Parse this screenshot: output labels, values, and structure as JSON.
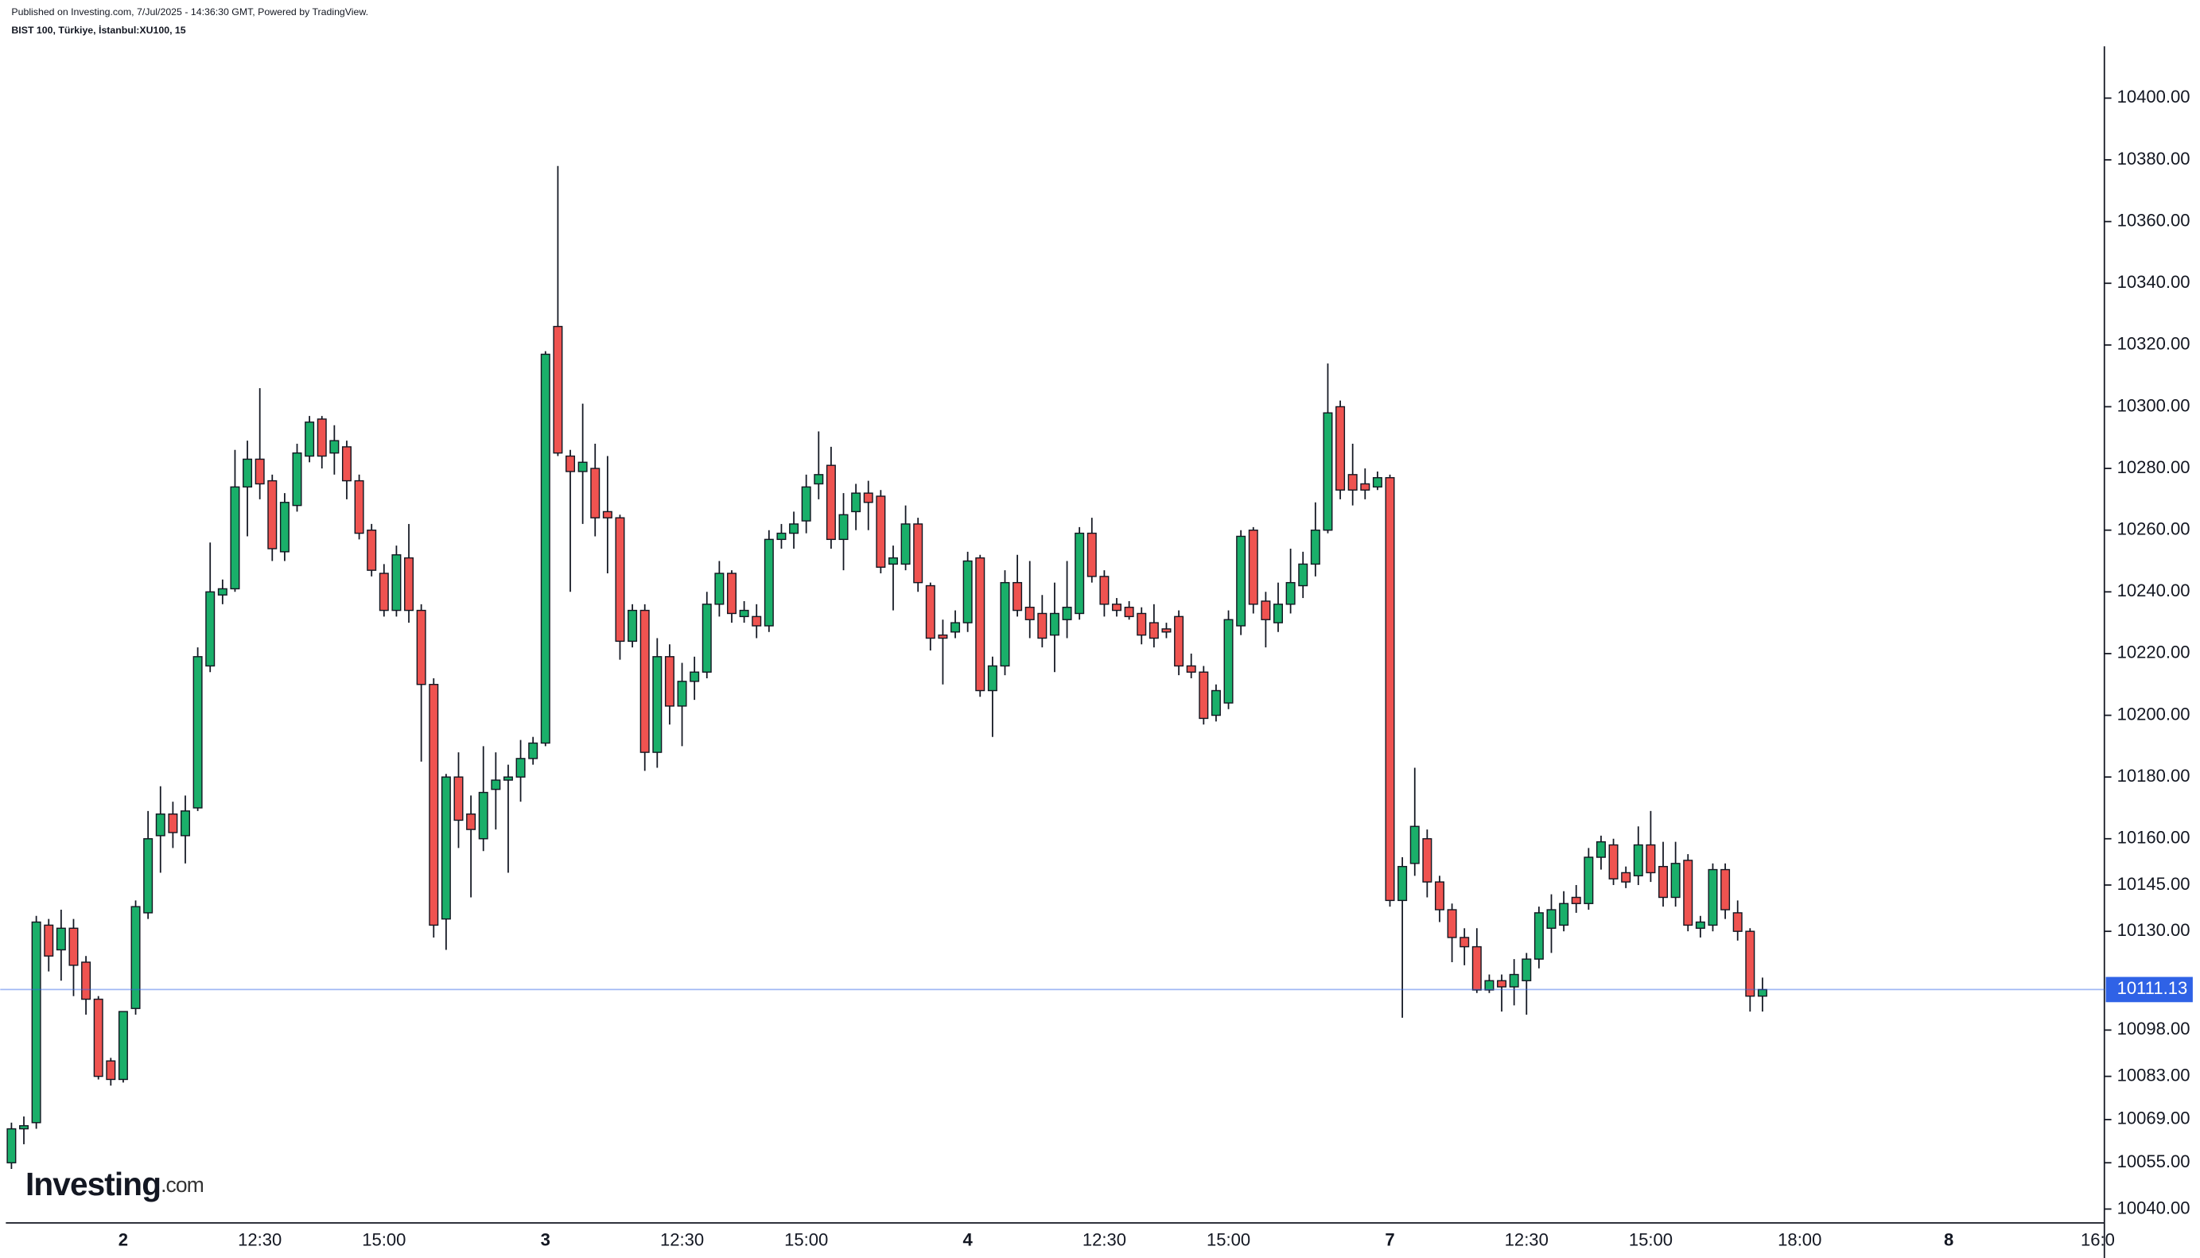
{
  "header": {
    "published": "Published on Investing.com, 7/Jul/2025 - 14:36:30 GMT, Powered by TradingView.",
    "symbol": "BIST 100, Türkiye, İstanbul:XU100, 15"
  },
  "logo": {
    "brand": "Investing",
    "suffix": ".com"
  },
  "chart_data": {
    "type": "candlestick",
    "categories": [
      null,
      null,
      null,
      null,
      null,
      null,
      null,
      null,
      null,
      "2",
      null,
      null,
      null,
      null,
      null,
      null,
      null,
      null,
      null,
      null,
      "12:30",
      null,
      null,
      null,
      null,
      null,
      null,
      null,
      null,
      null,
      "15:00",
      null,
      null,
      null,
      null,
      null,
      null,
      null,
      null,
      null,
      null,
      null,
      null,
      "3",
      null,
      null,
      null,
      null,
      null,
      null,
      null,
      null,
      null,
      null,
      "12:30",
      null,
      null,
      null,
      null,
      null,
      null,
      null,
      null,
      null,
      "15:00",
      null,
      null,
      null,
      null,
      null,
      null,
      null,
      null,
      null,
      null,
      null,
      null,
      "4",
      null,
      null,
      null,
      null,
      null,
      null,
      null,
      null,
      null,
      null,
      "12:30",
      null,
      null,
      null,
      null,
      null,
      null,
      null,
      null,
      null,
      "15:00",
      null,
      null,
      null,
      null,
      null,
      null,
      null,
      null,
      null,
      null,
      null,
      null,
      "7",
      null,
      null,
      null,
      null,
      null,
      null,
      null,
      null,
      null,
      null,
      "12:30",
      null,
      null,
      null,
      null,
      null,
      null,
      null,
      null,
      null,
      "15:00",
      null,
      null,
      null,
      null,
      null,
      null,
      null,
      null,
      null,
      null,
      null,
      "18:00",
      null,
      null,
      null,
      null,
      null,
      null,
      null,
      null,
      null,
      null,
      null,
      "8",
      null,
      null,
      null,
      null,
      null,
      null,
      null,
      null,
      null,
      null,
      null,
      "16:0"
    ],
    "open": [
      10055,
      10066,
      10068,
      10132,
      10124,
      10131,
      10120,
      10108,
      10088,
      10082,
      10105,
      10136,
      10161,
      10168,
      10161,
      10170,
      10216,
      10239,
      10241,
      10274,
      10283,
      10276,
      10253,
      10268,
      10284,
      10296,
      10285,
      10287,
      10276,
      10260,
      10246,
      10234,
      10251,
      10234,
      10210,
      10134,
      10180,
      10168,
      10160,
      10176,
      10179,
      10180,
      10186,
      10191,
      10326,
      10284,
      10279,
      10280,
      10266,
      10264,
      10224,
      10234,
      10188,
      10219,
      10203,
      10211,
      10214,
      10236,
      10246,
      10232,
      10232,
      10229,
      10257,
      10259,
      10263,
      10275,
      10281,
      10257,
      10266,
      10272,
      10271,
      10249,
      10249,
      10262,
      10242,
      10226,
      10227,
      10230,
      10251,
      10208,
      10216,
      10243,
      10235,
      10233,
      10226,
      10231,
      10233,
      10259,
      10245,
      10236,
      10235,
      10233,
      10230,
      10228,
      10232,
      10216,
      10214,
      10200,
      10204,
      10229,
      10260,
      10237,
      10230,
      10236,
      10242,
      10249,
      10260,
      10300,
      10278,
      10275,
      10274,
      10277,
      10140,
      10152,
      10160,
      10146,
      10137,
      10128,
      10125,
      10111,
      10114,
      10112,
      10114,
      10121,
      10131,
      10132,
      10141,
      10139,
      10154,
      10158,
      10149,
      10148,
      10158,
      10151,
      10141,
      10153,
      10131,
      10132,
      10150,
      10136,
      10130,
      10109,
      null,
      null,
      null,
      null,
      null,
      null,
      null,
      null,
      null,
      null,
      null,
      null,
      null,
      null,
      null,
      null,
      null,
      null,
      null,
      null,
      null,
      null,
      null,
      null,
      null,
      null,
      null
    ],
    "high": [
      10068,
      10070,
      10135,
      10134,
      10137,
      10134,
      10122,
      10109,
      10089,
      10104,
      10140,
      10169,
      10177,
      10172,
      10174,
      10222,
      10256,
      10244,
      10286,
      10289,
      10306,
      10278,
      10272,
      10288,
      10297,
      10297,
      10294,
      10289,
      10278,
      10262,
      10249,
      10255,
      10262,
      10236,
      10212,
      10181,
      10188,
      10174,
      10190,
      10188,
      10184,
      10192,
      10193,
      10318,
      10378,
      10286,
      10301,
      10288,
      10284,
      10265,
      10236,
      10236,
      10225,
      10223,
      10217,
      10219,
      10240,
      10250,
      10247,
      10237,
      10236,
      10260,
      10262,
      10266,
      10278,
      10292,
      10287,
      10272,
      10275,
      10276,
      10273,
      10255,
      10268,
      10264,
      10243,
      10231,
      10234,
      10253,
      10252,
      10219,
      10247,
      10252,
      10250,
      10239,
      10243,
      10250,
      10261,
      10264,
      10247,
      10238,
      10237,
      10235,
      10236,
      10230,
      10234,
      10220,
      10216,
      10210,
      10234,
      10260,
      10261,
      10240,
      10243,
      10254,
      10253,
      10269,
      10314,
      10302,
      10288,
      10280,
      10279,
      10278,
      10154,
      10183,
      10163,
      10148,
      10139,
      10131,
      10131,
      10116,
      10116,
      10121,
      10123,
      10138,
      10142,
      10143,
      10145,
      10157,
      10161,
      10160,
      10151,
      10164,
      10169,
      10159,
      10159,
      10155,
      10135,
      10152,
      10152,
      10140,
      10131,
      10115,
      null,
      null,
      null,
      null,
      null,
      null,
      null,
      null,
      null,
      null,
      null,
      null,
      null,
      null,
      null,
      null,
      null,
      null,
      null,
      null,
      null,
      null,
      null,
      null,
      null,
      null,
      null
    ],
    "low": [
      10053,
      10061,
      10066,
      10117,
      10114,
      10109,
      10103,
      10082,
      10080,
      10081,
      10103,
      10134,
      10149,
      10157,
      10152,
      10169,
      10214,
      10236,
      10240,
      10258,
      10270,
      10250,
      10250,
      10266,
      10282,
      10280,
      10278,
      10270,
      10257,
      10245,
      10232,
      10232,
      10230,
      10185,
      10128,
      10124,
      10157,
      10141,
      10156,
      10163,
      10149,
      10172,
      10184,
      10190,
      10284,
      10240,
      10262,
      10258,
      10246,
      10218,
      10222,
      10182,
      10183,
      10197,
      10190,
      10205,
      10212,
      10232,
      10230,
      10230,
      10225,
      10227,
      10254,
      10254,
      10259,
      10270,
      10254,
      10247,
      10260,
      10260,
      10246,
      10234,
      10247,
      10240,
      10221,
      10210,
      10225,
      10227,
      10206,
      10193,
      10213,
      10232,
      10225,
      10222,
      10214,
      10225,
      10231,
      10243,
      10232,
      10232,
      10231,
      10223,
      10222,
      10225,
      10213,
      10212,
      10197,
      10198,
      10202,
      10226,
      10233,
      10222,
      10227,
      10233,
      10238,
      10245,
      10259,
      10270,
      10268,
      10270,
      10273,
      10138,
      10102,
      10148,
      10141,
      10133,
      10120,
      10119,
      10110,
      10110,
      10104,
      10106,
      10103,
      10118,
      10123,
      10130,
      10136,
      10137,
      10150,
      10145,
      10144,
      10145,
      10146,
      10138,
      10138,
      10130,
      10128,
      10130,
      10134,
      10127,
      10104,
      10104,
      null,
      null,
      null,
      null,
      null,
      null,
      null,
      null,
      null,
      null,
      null,
      null,
      null,
      null,
      null,
      null,
      null,
      null,
      null,
      null,
      null,
      null,
      null,
      null,
      null,
      null,
      null
    ],
    "close": [
      10066,
      10067,
      10133,
      10122,
      10131,
      10119,
      10108,
      10083,
      10082,
      10104,
      10138,
      10160,
      10168,
      10162,
      10169,
      10219,
      10240,
      10241,
      10274,
      10283,
      10275,
      10254,
      10269,
      10285,
      10295,
      10284,
      10289,
      10276,
      10259,
      10247,
      10234,
      10252,
      10234,
      10210,
      10132,
      10180,
      10166,
      10163,
      10175,
      10179,
      10180,
      10186,
      10191,
      10317,
      10285,
      10279,
      10282,
      10264,
      10264,
      10224,
      10234,
      10188,
      10219,
      10203,
      10211,
      10214,
      10236,
      10246,
      10233,
      10234,
      10229,
      10257,
      10259,
      10262,
      10274,
      10278,
      10257,
      10265,
      10272,
      10269,
      10248,
      10251,
      10262,
      10243,
      10225,
      10225,
      10230,
      10250,
      10208,
      10216,
      10243,
      10234,
      10231,
      10225,
      10233,
      10235,
      10259,
      10245,
      10236,
      10234,
      10232,
      10226,
      10225,
      10227,
      10216,
      10214,
      10199,
      10208,
      10231,
      10258,
      10236,
      10231,
      10236,
      10243,
      10249,
      10260,
      10298,
      10273,
      10273,
      10273,
      10277,
      10140,
      10151,
      10164,
      10146,
      10137,
      10128,
      10125,
      10111,
      10114,
      10112,
      10116,
      10121,
      10136,
      10137,
      10139,
      10139,
      10154,
      10159,
      10147,
      10146,
      10158,
      10149,
      10141,
      10152,
      10132,
      10133,
      10150,
      10137,
      10130,
      10109,
      10111.13,
      null,
      null,
      null,
      null,
      null,
      null,
      null,
      null,
      null,
      null,
      null,
      null,
      null,
      null,
      null,
      null,
      null,
      null,
      null,
      null,
      null,
      null,
      null,
      null,
      null,
      null,
      null
    ],
    "up_color": "#1aaf6a",
    "down_color": "#ef5350",
    "price_line_color": "#2f62e6",
    "ylim": [
      10035.5,
      10416.8
    ],
    "yticks": [
      {
        "value": 10400,
        "label": "10400.00"
      },
      {
        "value": 10380,
        "label": "10380.00"
      },
      {
        "value": 10360,
        "label": "10360.00"
      },
      {
        "value": 10340,
        "label": "10340.00"
      },
      {
        "value": 10320,
        "label": "10320.00"
      },
      {
        "value": 10300,
        "label": "10300.00"
      },
      {
        "value": 10280,
        "label": "10280.00"
      },
      {
        "value": 10260,
        "label": "10260.00"
      },
      {
        "value": 10240,
        "label": "10240.00"
      },
      {
        "value": 10220,
        "label": "10220.00"
      },
      {
        "value": 10200,
        "label": "10200.00"
      },
      {
        "value": 10180,
        "label": "10180.00"
      },
      {
        "value": 10160,
        "label": "10160.00"
      },
      {
        "value": 10145,
        "label": "10145.00"
      },
      {
        "value": 10130,
        "label": "10130.00"
      },
      {
        "value": 10098,
        "label": "10098.00"
      },
      {
        "value": 10083,
        "label": "10083.00"
      },
      {
        "value": 10069,
        "label": "10069.00"
      },
      {
        "value": 10055,
        "label": "10055.00"
      },
      {
        "value": 10040,
        "label": "10040.00"
      }
    ],
    "grid": false
  }
}
